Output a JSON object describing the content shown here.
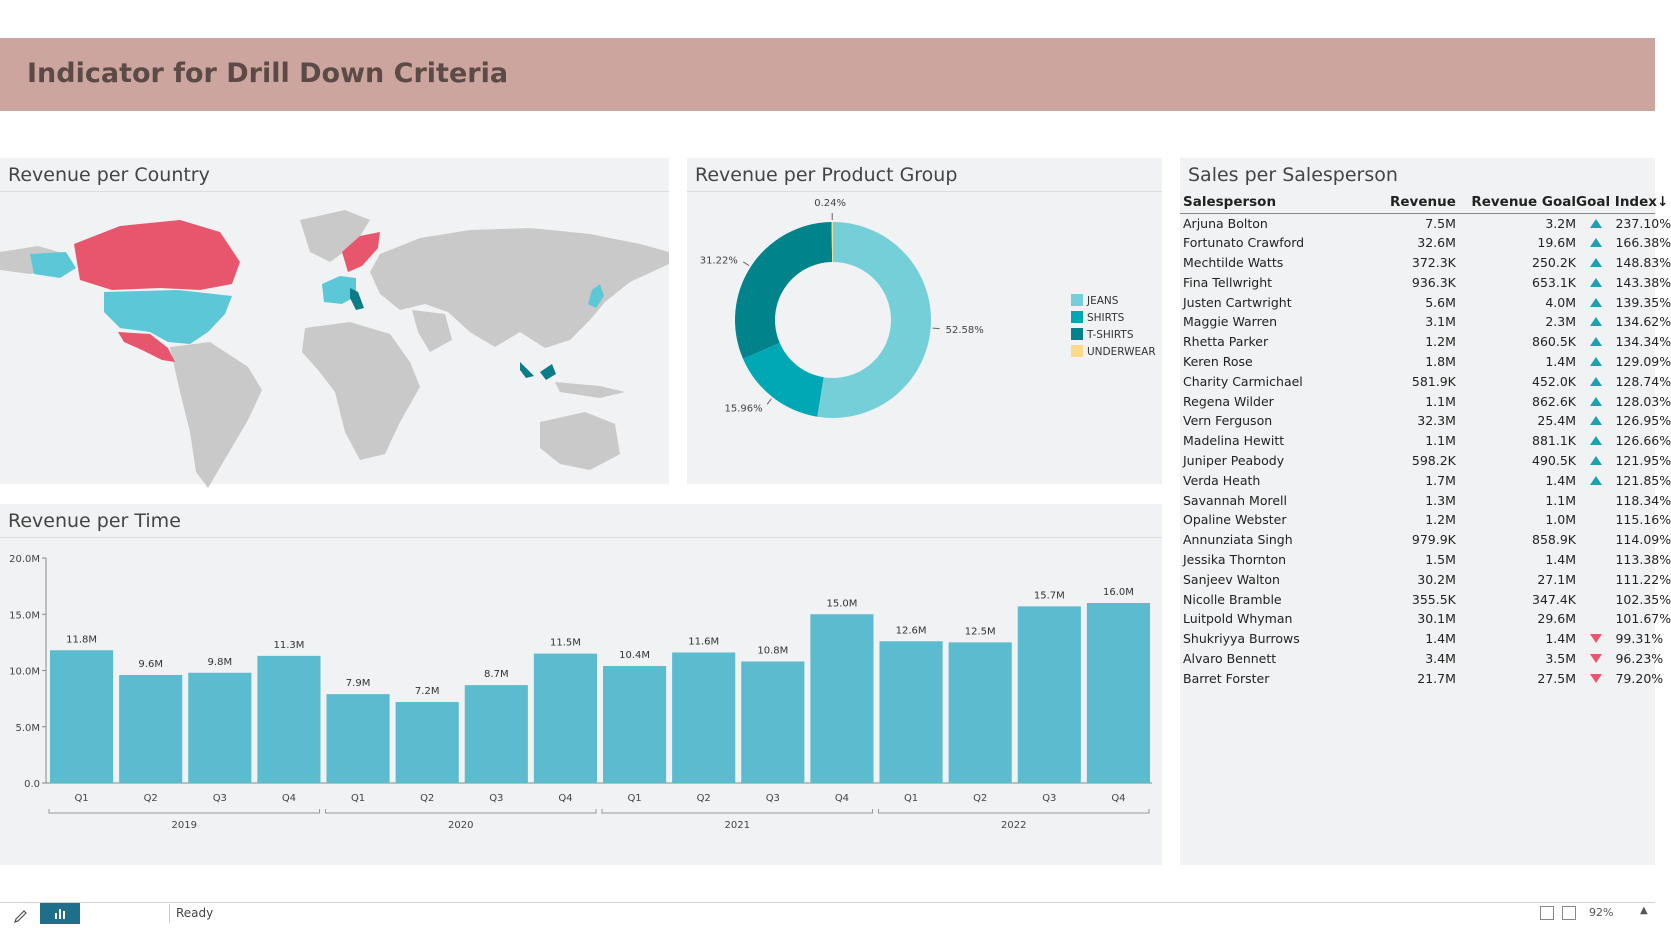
{
  "header": {
    "title": "Indicator for Drill Down Criteria"
  },
  "panels": {
    "country_title": "Revenue per Country",
    "product_title": "Revenue per Product Group",
    "time_title": "Revenue per Time",
    "sales_title": "Sales per Salesperson"
  },
  "colors": {
    "header_bg": "#cba59e",
    "panel_bg": "#f0f2f3",
    "bar": "#5bbccf",
    "map_red": "#e8566d",
    "map_teal": "#5cc7d6",
    "map_dark": "#0a7d86",
    "map_gray": "#c9c9c9",
    "indicator_up": "#1e9fb2",
    "indicator_down": "#e8566d"
  },
  "chart_data": [
    {
      "type": "pie",
      "donut": true,
      "labels": [
        "JEANS",
        "SHIRTS",
        "T-SHIRTS",
        "UNDERWEAR"
      ],
      "values": [
        52.58,
        15.96,
        31.22,
        0.24
      ],
      "value_labels": [
        "52.58%",
        "15.96%",
        "31.22%",
        "0.24%"
      ],
      "colors": [
        "#74cfd8",
        "#00a7b4",
        "#00838a",
        "#fdd98a"
      ],
      "legend_position": "right"
    },
    {
      "type": "bar",
      "categories": [
        "Q1",
        "Q2",
        "Q3",
        "Q4",
        "Q1",
        "Q2",
        "Q3",
        "Q4",
        "Q1",
        "Q2",
        "Q3",
        "Q4",
        "Q1",
        "Q2",
        "Q3",
        "Q4"
      ],
      "groups": [
        {
          "label": "2019",
          "count": 4
        },
        {
          "label": "2020",
          "count": 4
        },
        {
          "label": "2021",
          "count": 4
        },
        {
          "label": "2022",
          "count": 4
        }
      ],
      "values": [
        11.8,
        9.6,
        9.8,
        11.3,
        7.9,
        7.2,
        8.7,
        11.5,
        10.4,
        11.6,
        10.8,
        15.0,
        12.6,
        12.5,
        15.7,
        16.0
      ],
      "value_labels": [
        "11.8M",
        "9.6M",
        "9.8M",
        "11.3M",
        "7.9M",
        "7.2M",
        "8.7M",
        "11.5M",
        "10.4M",
        "11.6M",
        "10.8M",
        "15.0M",
        "12.6M",
        "12.5M",
        "15.7M",
        "16.0M"
      ],
      "yticks": [
        "0.0",
        "5.0M",
        "10.0M",
        "15.0M",
        "20.0M"
      ],
      "ylim": [
        0,
        20
      ]
    }
  ],
  "sales_table": {
    "headers": {
      "name": "Salesperson",
      "revenue": "Revenue",
      "goal": "Revenue Goal",
      "index": "Goal Index",
      "sort_icon": "↓"
    },
    "rows": [
      {
        "name": "Arjuna Bolton",
        "revenue": "7.5M",
        "goal": "3.2M",
        "indicator": "up",
        "index": "237.10%"
      },
      {
        "name": "Fortunato Crawford",
        "revenue": "32.6M",
        "goal": "19.6M",
        "indicator": "up",
        "index": "166.38%"
      },
      {
        "name": "Mechtilde Watts",
        "revenue": "372.3K",
        "goal": "250.2K",
        "indicator": "up",
        "index": "148.83%"
      },
      {
        "name": "Fina Tellwright",
        "revenue": "936.3K",
        "goal": "653.1K",
        "indicator": "up",
        "index": "143.38%"
      },
      {
        "name": "Justen Cartwright",
        "revenue": "5.6M",
        "goal": "4.0M",
        "indicator": "up",
        "index": "139.35%"
      },
      {
        "name": "Maggie Warren",
        "revenue": "3.1M",
        "goal": "2.3M",
        "indicator": "up",
        "index": "134.62%"
      },
      {
        "name": "Rhetta Parker",
        "revenue": "1.2M",
        "goal": "860.5K",
        "indicator": "up",
        "index": "134.34%"
      },
      {
        "name": "Keren Rose",
        "revenue": "1.8M",
        "goal": "1.4M",
        "indicator": "up",
        "index": "129.09%"
      },
      {
        "name": "Charity Carmichael",
        "revenue": "581.9K",
        "goal": "452.0K",
        "indicator": "up",
        "index": "128.74%"
      },
      {
        "name": "Regena Wilder",
        "revenue": "1.1M",
        "goal": "862.6K",
        "indicator": "up",
        "index": "128.03%"
      },
      {
        "name": "Vern Ferguson",
        "revenue": "32.3M",
        "goal": "25.4M",
        "indicator": "up",
        "index": "126.95%"
      },
      {
        "name": "Madelina Hewitt",
        "revenue": "1.1M",
        "goal": "881.1K",
        "indicator": "up",
        "index": "126.66%"
      },
      {
        "name": "Juniper Peabody",
        "revenue": "598.2K",
        "goal": "490.5K",
        "indicator": "up",
        "index": "121.95%"
      },
      {
        "name": "Verda Heath",
        "revenue": "1.7M",
        "goal": "1.4M",
        "indicator": "up",
        "index": "121.85%"
      },
      {
        "name": "Savannah Morell",
        "revenue": "1.3M",
        "goal": "1.1M",
        "indicator": "none",
        "index": "118.34%"
      },
      {
        "name": "Opaline Webster",
        "revenue": "1.2M",
        "goal": "1.0M",
        "indicator": "none",
        "index": "115.16%"
      },
      {
        "name": "Annunziata Singh",
        "revenue": "979.9K",
        "goal": "858.9K",
        "indicator": "none",
        "index": "114.09%"
      },
      {
        "name": "Jessika Thornton",
        "revenue": "1.5M",
        "goal": "1.4M",
        "indicator": "none",
        "index": "113.38%"
      },
      {
        "name": "Sanjeev Walton",
        "revenue": "30.2M",
        "goal": "27.1M",
        "indicator": "none",
        "index": "111.22%"
      },
      {
        "name": "Nicolle Bramble",
        "revenue": "355.5K",
        "goal": "347.4K",
        "indicator": "none",
        "index": "102.35%"
      },
      {
        "name": "Luitpold Whyman",
        "revenue": "30.1M",
        "goal": "29.6M",
        "indicator": "none",
        "index": "101.67%"
      },
      {
        "name": "Shukriyya Burrows",
        "revenue": "1.4M",
        "goal": "1.4M",
        "indicator": "down",
        "index": "99.31%"
      },
      {
        "name": "Alvaro Bennett",
        "revenue": "3.4M",
        "goal": "3.5M",
        "indicator": "down",
        "index": "96.23%"
      },
      {
        "name": "Barret Forster",
        "revenue": "21.7M",
        "goal": "27.5M",
        "indicator": "down",
        "index": "79.20%"
      }
    ]
  },
  "statusbar": {
    "ready": "Ready",
    "zoom": "92%",
    "caret": "▲",
    "icons": [
      "pencil-icon",
      "chart-icon",
      "fit-page-icon",
      "full-screen-icon"
    ]
  }
}
